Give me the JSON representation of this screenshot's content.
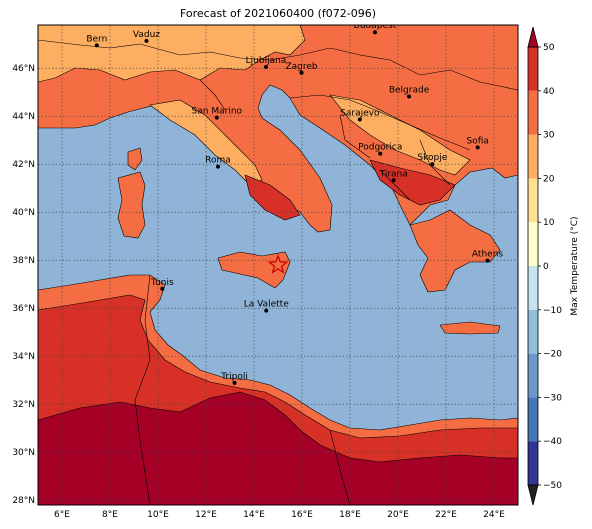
{
  "title": "Forecast of 2021060400 (f072-096)",
  "colorbar": {
    "label": "Max Temperature (°C)",
    "ticks": [
      "50",
      "40",
      "30",
      "20",
      "10",
      "0",
      "−10",
      "−20",
      "−30",
      "−40",
      "−50"
    ],
    "range": [
      -50,
      50
    ],
    "extend": "both",
    "colors": [
      "#313695",
      "#4575b4",
      "#6e97c9",
      "#91bfdb",
      "#c6e4ef",
      "#ffffcc",
      "#fee090",
      "#fdae61",
      "#f46d43",
      "#d73027",
      "#a50026"
    ]
  },
  "map": {
    "lat_labels": [
      "46°N",
      "44°N",
      "42°N",
      "40°N",
      "38°N",
      "36°N",
      "34°N",
      "32°N",
      "30°N",
      "28°N"
    ],
    "lon_labels": [
      "6°E",
      "8°E",
      "10°E",
      "12°E",
      "14°E",
      "16°E",
      "18°E",
      "20°E",
      "22°E",
      "24°E"
    ],
    "extent": {
      "lon": [
        5,
        25
      ],
      "lat": [
        27.8,
        47.8
      ]
    },
    "sea_color": "#8fb4d8",
    "land_colors": {
      "cool": "#fdae61",
      "warm": "#f46d43",
      "hot": "#d73027",
      "very_hot": "#a50026"
    },
    "marker": "star",
    "cities": [
      {
        "name": "Bern",
        "lon": 7.45,
        "lat": 46.95
      },
      {
        "name": "Vaduz",
        "lon": 9.52,
        "lat": 47.14
      },
      {
        "name": "Budapest",
        "lon": 19.04,
        "lat": 47.5
      },
      {
        "name": "Ljubljana",
        "lon": 14.5,
        "lat": 46.05
      },
      {
        "name": "Zagreb",
        "lon": 15.98,
        "lat": 45.81
      },
      {
        "name": "Belgrade",
        "lon": 20.46,
        "lat": 44.82
      },
      {
        "name": "San Marino",
        "lon": 12.45,
        "lat": 43.94
      },
      {
        "name": "Sarajevo",
        "lon": 18.41,
        "lat": 43.86
      },
      {
        "name": "Sofia",
        "lon": 23.32,
        "lat": 42.7
      },
      {
        "name": "Roma",
        "lon": 12.5,
        "lat": 41.9
      },
      {
        "name": "Podgorica",
        "lon": 19.26,
        "lat": 42.44
      },
      {
        "name": "Skopje",
        "lon": 21.43,
        "lat": 42.0
      },
      {
        "name": "Tirana",
        "lon": 19.82,
        "lat": 41.33
      },
      {
        "name": "Athens",
        "lon": 23.73,
        "lat": 37.98
      },
      {
        "name": "Tunis",
        "lon": 10.18,
        "lat": 36.81
      },
      {
        "name": "La Valette",
        "lon": 14.51,
        "lat": 35.9
      },
      {
        "name": "Tripoli",
        "lon": 13.19,
        "lat": 32.89
      }
    ],
    "star": {
      "lon": 15.0,
      "lat": 37.8
    }
  }
}
